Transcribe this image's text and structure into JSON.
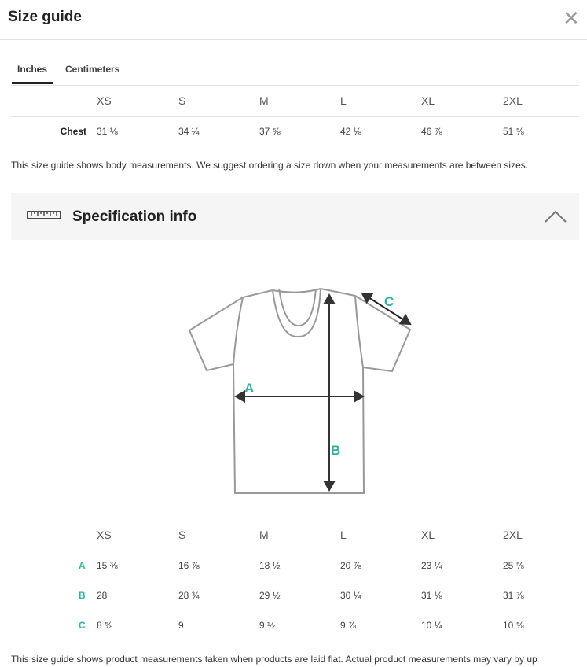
{
  "header": {
    "title": "Size guide",
    "close_icon": "close-icon"
  },
  "tabs": [
    {
      "label": "Inches",
      "active": true
    },
    {
      "label": "Centimeters",
      "active": false
    }
  ],
  "body_table": {
    "sizes": [
      "XS",
      "S",
      "M",
      "L",
      "XL",
      "2XL"
    ],
    "rows": [
      {
        "label": "Chest",
        "values": [
          "31 ⅛",
          "34 ¼",
          "37 ⅝",
          "42 ⅛",
          "46 ⅞",
          "51 ⅝"
        ]
      }
    ]
  },
  "body_note": "This size guide shows body measurements. We suggest ordering a size down when your measurements are between sizes.",
  "spec": {
    "title": "Specification info",
    "icon": "ruler-icon",
    "toggle_icon": "chevron-up-icon",
    "diagram_labels": [
      "A",
      "B",
      "C"
    ],
    "accent": "#2bb3a3"
  },
  "product_table": {
    "sizes": [
      "XS",
      "S",
      "M",
      "L",
      "XL",
      "2XL"
    ],
    "rows": [
      {
        "label": "A",
        "values": [
          "15 ⅜",
          "16 ⅞",
          "18 ½",
          "20 ⅞",
          "23 ¼",
          "25 ⅝"
        ]
      },
      {
        "label": "B",
        "values": [
          "28",
          "28 ¾",
          "29 ½",
          "30 ¼",
          "31 ⅛",
          "31 ⅞"
        ]
      },
      {
        "label": "C",
        "values": [
          "8 ⅝",
          "9",
          "9 ½",
          "9 ⅞",
          "10 ¼",
          "10 ⅝"
        ]
      }
    ]
  },
  "product_note": "This size guide shows product measurements taken when products are laid flat. Actual product measurements may vary by up"
}
